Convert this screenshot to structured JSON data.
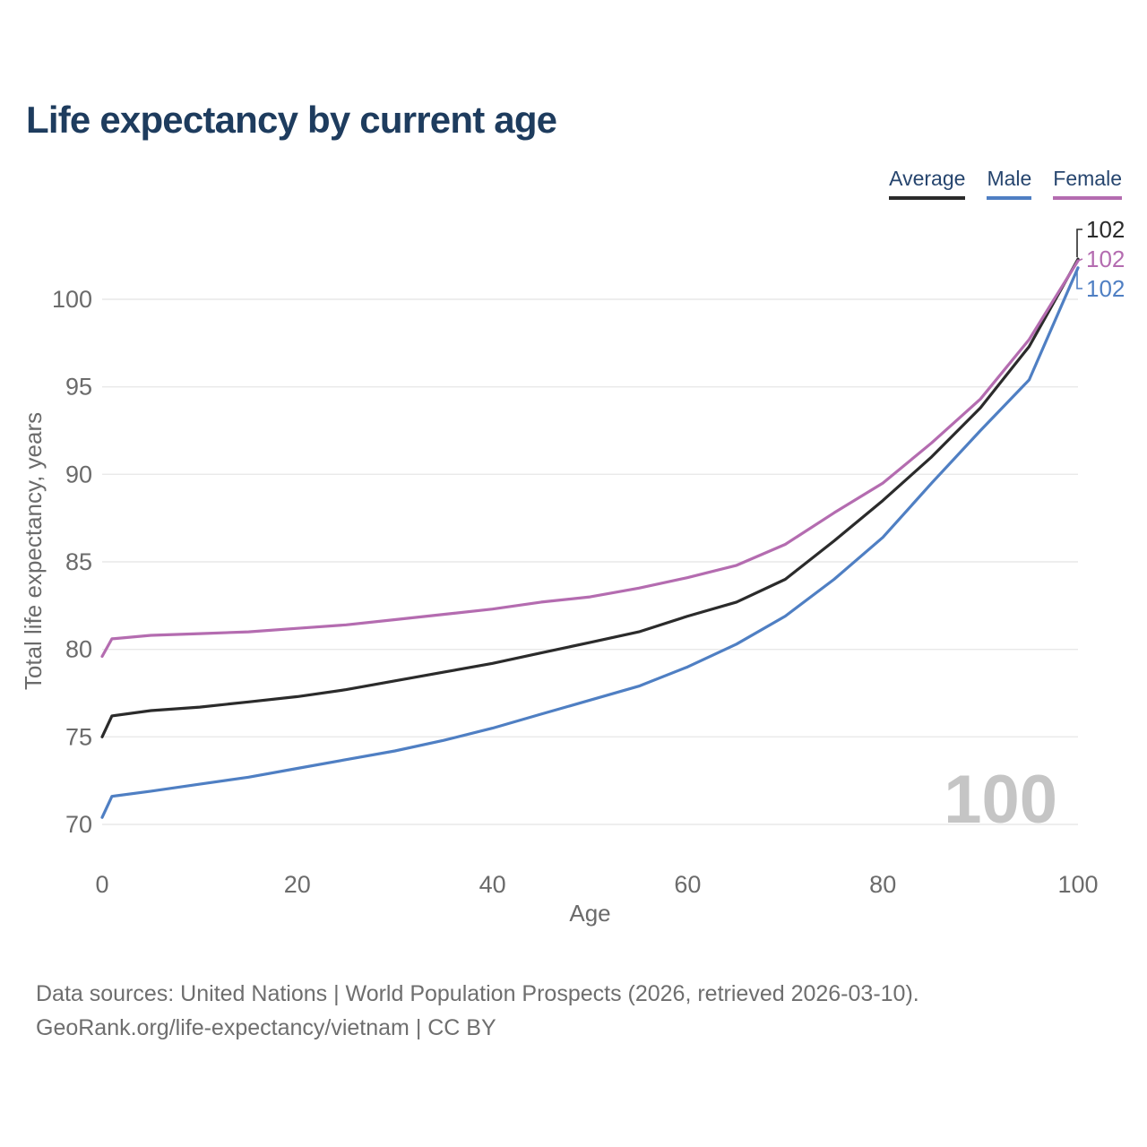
{
  "title": "Life expectancy by current age",
  "legend": [
    {
      "label": "Average",
      "color": "#2b2b2b"
    },
    {
      "label": "Male",
      "color": "#4f7fc3"
    },
    {
      "label": "Female",
      "color": "#b46cb0"
    }
  ],
  "chart_data": {
    "type": "line",
    "title": "Life expectancy by current age",
    "xlabel": "Age",
    "ylabel": "Total life expectancy, years",
    "x_ticks": [
      0,
      20,
      40,
      60,
      80,
      100
    ],
    "y_ticks": [
      70,
      75,
      80,
      85,
      90,
      95,
      100
    ],
    "xlim": [
      0,
      100
    ],
    "ylim": [
      70,
      102.5
    ],
    "grid": "horizontal",
    "legend_position": "top-right",
    "watermark": "100",
    "x": [
      0,
      1,
      5,
      10,
      15,
      20,
      25,
      30,
      35,
      40,
      45,
      50,
      55,
      60,
      65,
      70,
      75,
      80,
      85,
      90,
      95,
      100
    ],
    "series": [
      {
        "name": "Average",
        "color": "#2b2b2b",
        "end_label": "102",
        "values": [
          75.0,
          76.2,
          76.5,
          76.7,
          77.0,
          77.3,
          77.7,
          78.2,
          78.7,
          79.2,
          79.8,
          80.4,
          81.0,
          81.9,
          82.7,
          84.0,
          86.2,
          88.5,
          91.0,
          93.8,
          97.3,
          102.3
        ]
      },
      {
        "name": "Male",
        "color": "#4f7fc3",
        "end_label": "102",
        "values": [
          70.4,
          71.6,
          71.9,
          72.3,
          72.7,
          73.2,
          73.7,
          74.2,
          74.8,
          75.5,
          76.3,
          77.1,
          77.9,
          79.0,
          80.3,
          81.9,
          84.0,
          86.4,
          89.5,
          92.5,
          95.4,
          101.8
        ]
      },
      {
        "name": "Female",
        "color": "#b46cb0",
        "end_label": "102",
        "values": [
          79.6,
          80.6,
          80.8,
          80.9,
          81.0,
          81.2,
          81.4,
          81.7,
          82.0,
          82.3,
          82.7,
          83.0,
          83.5,
          84.1,
          84.8,
          86.0,
          87.8,
          89.5,
          91.8,
          94.3,
          97.7,
          102.2
        ]
      }
    ]
  },
  "footer": {
    "line1": "Data sources: United Nations | World Population Prospects (2026, retrieved 2026-03-10).",
    "line2": "GeoRank.org/life-expectancy/vietnam | CC BY"
  }
}
